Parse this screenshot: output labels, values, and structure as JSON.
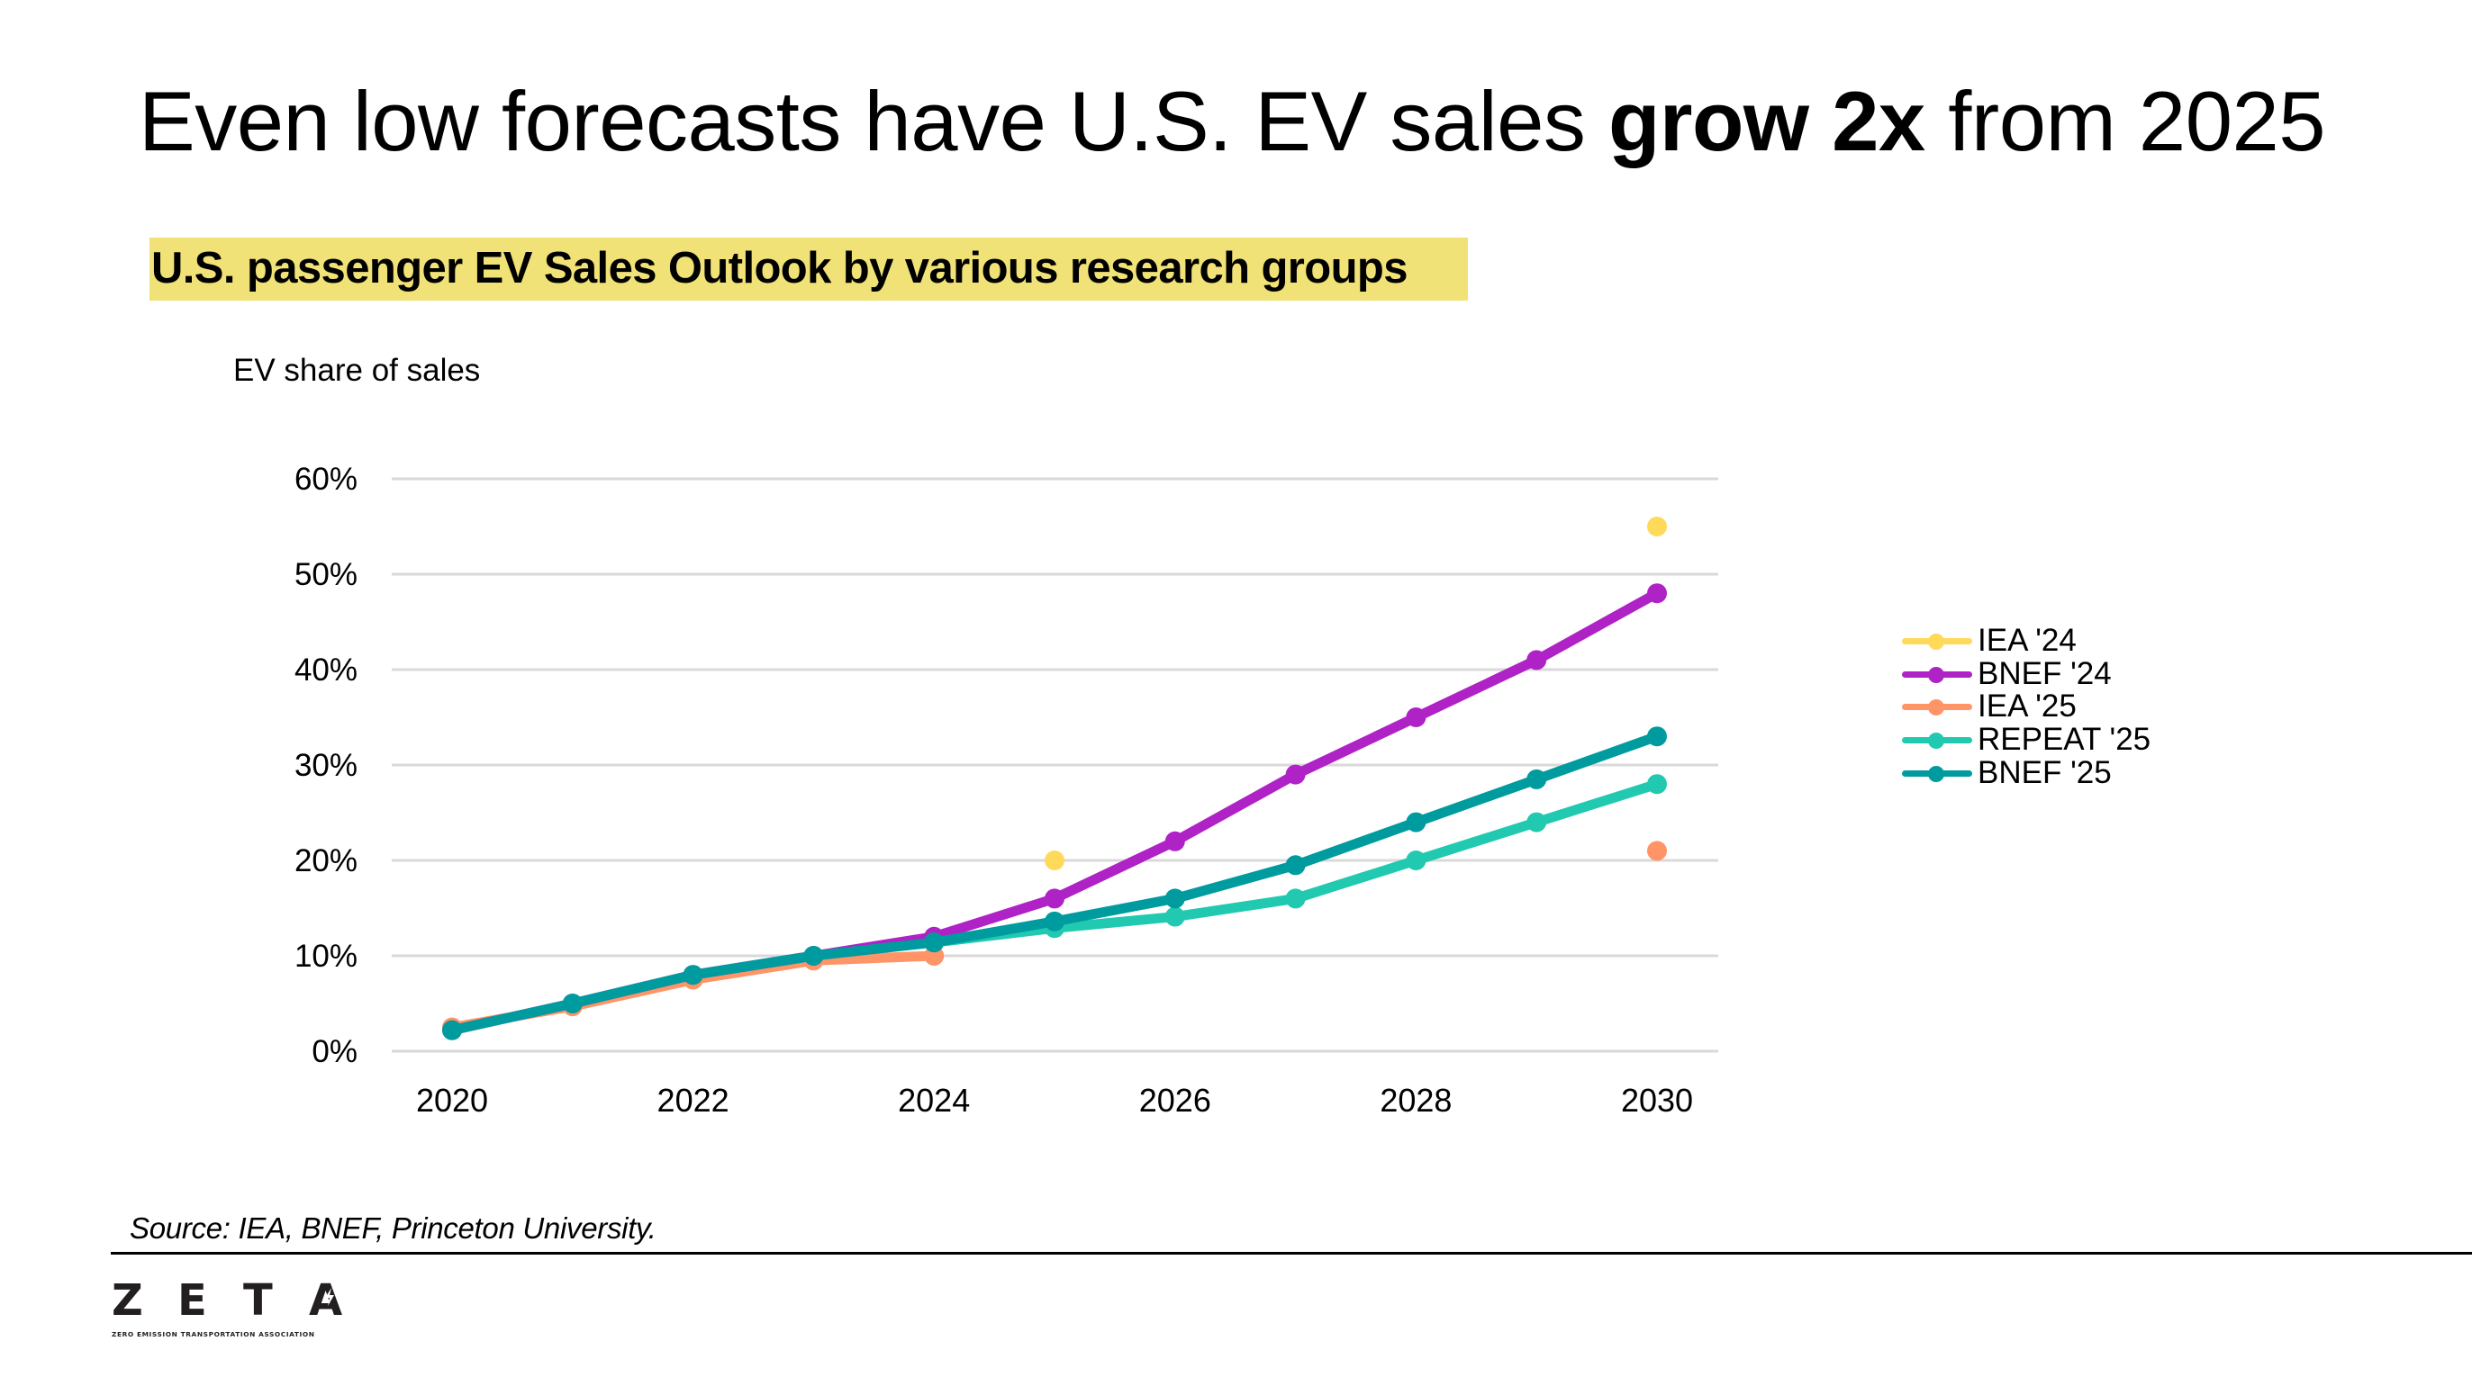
{
  "header": {
    "title_prefix": "Even low forecasts have U.S. EV sales ",
    "title_bold": "grow 2x",
    "title_suffix": " from 2025",
    "subtitle": "U.S. passenger EV Sales Outlook by various research groups",
    "highlight_color": "#F1E277"
  },
  "chart_data": {
    "type": "line",
    "title": "U.S. passenger EV Sales Outlook by various research groups",
    "ylabel": "EV share of sales",
    "xlabel": "",
    "x": [
      2020,
      2021,
      2022,
      2023,
      2024,
      2025,
      2026,
      2027,
      2028,
      2029,
      2030
    ],
    "xlim": [
      2020,
      2030
    ],
    "xticks": [
      2020,
      2022,
      2024,
      2026,
      2028,
      2030
    ],
    "xtick_labels": [
      "2020",
      "2022",
      "2024",
      "2026",
      "2028",
      "2030"
    ],
    "ylim": [
      0,
      60
    ],
    "yticks": [
      0,
      10,
      20,
      30,
      40,
      50,
      60
    ],
    "ytick_labels": [
      "0%",
      "10%",
      "20%",
      "30%",
      "40%",
      "50%",
      "60%"
    ],
    "grid": "horizontal",
    "legend_position": "right",
    "series": [
      {
        "name": "IEA '24",
        "color": "#FFD95A",
        "values": [
          null,
          null,
          null,
          null,
          null,
          20,
          null,
          null,
          null,
          null,
          55
        ]
      },
      {
        "name": "BNEF '24",
        "color": "#AF22C6",
        "values": [
          2.2,
          5,
          8,
          10,
          12,
          16,
          22,
          29,
          35,
          41,
          48
        ]
      },
      {
        "name": "IEA '25",
        "color": "#FF9466",
        "values": [
          2.5,
          4.7,
          7.5,
          9.5,
          10,
          null,
          null,
          null,
          null,
          null,
          21
        ]
      },
      {
        "name": "REPEAT '25",
        "color": "#21C9B0",
        "values": [
          null,
          null,
          null,
          null,
          11.4,
          12.9,
          14.1,
          16,
          20,
          24,
          28
        ]
      },
      {
        "name": "BNEF '25",
        "color": "#009B9E",
        "values": [
          2.2,
          5,
          8,
          10,
          11.4,
          13.6,
          16,
          19.5,
          24,
          28.5,
          33
        ]
      }
    ],
    "source": "Source: IEA, BNEF, Princeton University."
  },
  "footer": {
    "source": "Source: IEA, BNEF, Princeton University.",
    "logo_letters": [
      "Z",
      "E",
      "T",
      "A"
    ],
    "logo_tagline": "ZERO EMISSION TRANSPORTATION ASSOCIATION"
  }
}
